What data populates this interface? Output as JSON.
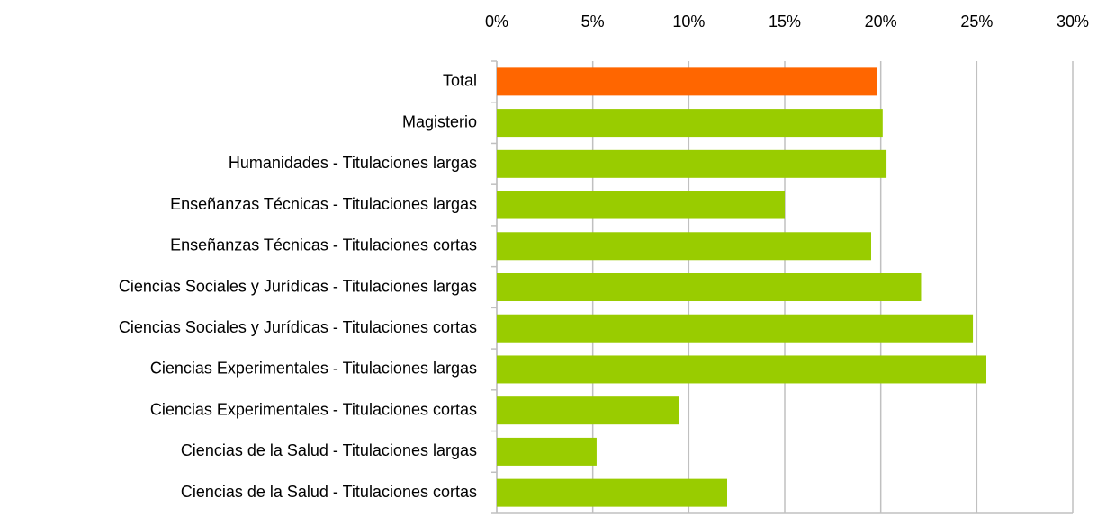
{
  "chart_data": {
    "type": "hbar",
    "categories": [
      "Total",
      "Magisterio",
      "Humanidades - Titulaciones largas",
      "Enseñanzas Técnicas - Titulaciones largas",
      "Enseñanzas Técnicas - Titulaciones cortas",
      "Ciencias Sociales y Jurídicas - Titulaciones largas",
      "Ciencias Sociales y Jurídicas - Titulaciones cortas",
      "Ciencias Experimentales - Titulaciones largas",
      "Ciencias Experimentales - Titulaciones cortas",
      "Ciencias de la Salud - Titulaciones largas",
      "Ciencias de la Salud - Titulaciones cortas"
    ],
    "values": [
      19.8,
      20.1,
      20.3,
      15.0,
      19.5,
      22.1,
      24.8,
      25.5,
      9.5,
      5.2,
      12.0
    ],
    "colors": [
      "#ff6600",
      "#99cc00",
      "#99cc00",
      "#99cc00",
      "#99cc00",
      "#99cc00",
      "#99cc00",
      "#99cc00",
      "#99cc00",
      "#99cc00",
      "#99cc00"
    ],
    "xlim": [
      0,
      30
    ],
    "xticks": [
      {
        "value": 0,
        "label": "0%"
      },
      {
        "value": 5,
        "label": "5%"
      },
      {
        "value": 10,
        "label": "10%"
      },
      {
        "value": 15,
        "label": "15%"
      },
      {
        "value": 20,
        "label": "20%"
      },
      {
        "value": 25,
        "label": "25%"
      },
      {
        "value": 30,
        "label": "30%"
      }
    ],
    "grid": true
  }
}
